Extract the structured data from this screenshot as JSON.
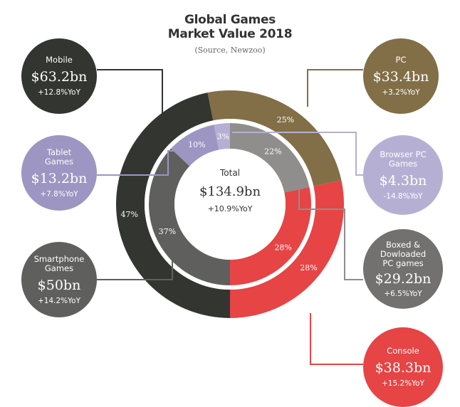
{
  "header": {
    "title_line1": "Global Games",
    "title_line2": "Market Value 2018",
    "subtitle": "(Source, Newzoo)"
  },
  "center": {
    "label": "Total",
    "value": "$134.9bn",
    "yoy": "+10.9%YoY"
  },
  "bubbles": [
    {
      "id": "mobile",
      "label": "Mobile",
      "value": "$63.2bn",
      "yoy": "+12.8%YoY",
      "color": "#333531"
    },
    {
      "id": "tablet",
      "label": "Tablet Games",
      "value": "$13.2bn",
      "yoy": "+7.8%YoY",
      "color": "#9d95c2"
    },
    {
      "id": "smartphone",
      "label": "Smartphone Games",
      "value": "$50bn",
      "yoy": "+14.2%YoY",
      "color": "#5f5f5d"
    },
    {
      "id": "pc",
      "label": "PC",
      "value": "$33.4bn",
      "yoy": "+3.2%YoY",
      "color": "#826f47"
    },
    {
      "id": "browser",
      "label": "Browser PC Games",
      "value": "$4.3bn",
      "yoy": "-14.8%YoY",
      "color": "#b5b0d3"
    },
    {
      "id": "boxed",
      "label": "Boxed & Dowloaded PC games",
      "value": "$29.2bn",
      "yoy": "+6.5%YoY",
      "color": "#727170"
    },
    {
      "id": "console",
      "label": "Console",
      "value": "$38.3bn",
      "yoy": "+15.2%YoY",
      "color": "#e64445"
    }
  ],
  "chart_data": {
    "type": "pie",
    "title": "Global Games Market Value 2018",
    "subtitle": "(Source, Newzoo)",
    "total": 134.9,
    "unit": "bn USD",
    "outer_ring": {
      "slices": [
        {
          "name": "Mobile",
          "value": 63.2,
          "percent": 47,
          "percent_label": "47%",
          "color": "#333531"
        },
        {
          "name": "PC",
          "value": 33.4,
          "percent": 25,
          "percent_label": "25%",
          "color": "#826f47"
        },
        {
          "name": "Console",
          "value": 38.3,
          "percent": 28,
          "percent_label": "28%",
          "color": "#e64445"
        }
      ]
    },
    "inner_ring": {
      "slices": [
        {
          "name": "Smartphone Games",
          "value": 50,
          "percent": 37,
          "percent_label": "37%",
          "color": "#5f5f5d"
        },
        {
          "name": "Tablet Games",
          "value": 13.2,
          "percent": 10,
          "percent_label": "10%",
          "color": "#9d95c2"
        },
        {
          "name": "Browser PC Games",
          "value": 4.3,
          "percent": 3,
          "percent_label": "3%",
          "color": "#b5b0d3"
        },
        {
          "name": "Boxed & Dowloaded PC games",
          "value": 29.2,
          "percent": 22,
          "percent_label": "22%",
          "color": "#8f8e8c"
        },
        {
          "name": "Console",
          "value": 38.3,
          "percent": 28,
          "percent_label": "28%",
          "color": "#e64445"
        }
      ]
    }
  }
}
